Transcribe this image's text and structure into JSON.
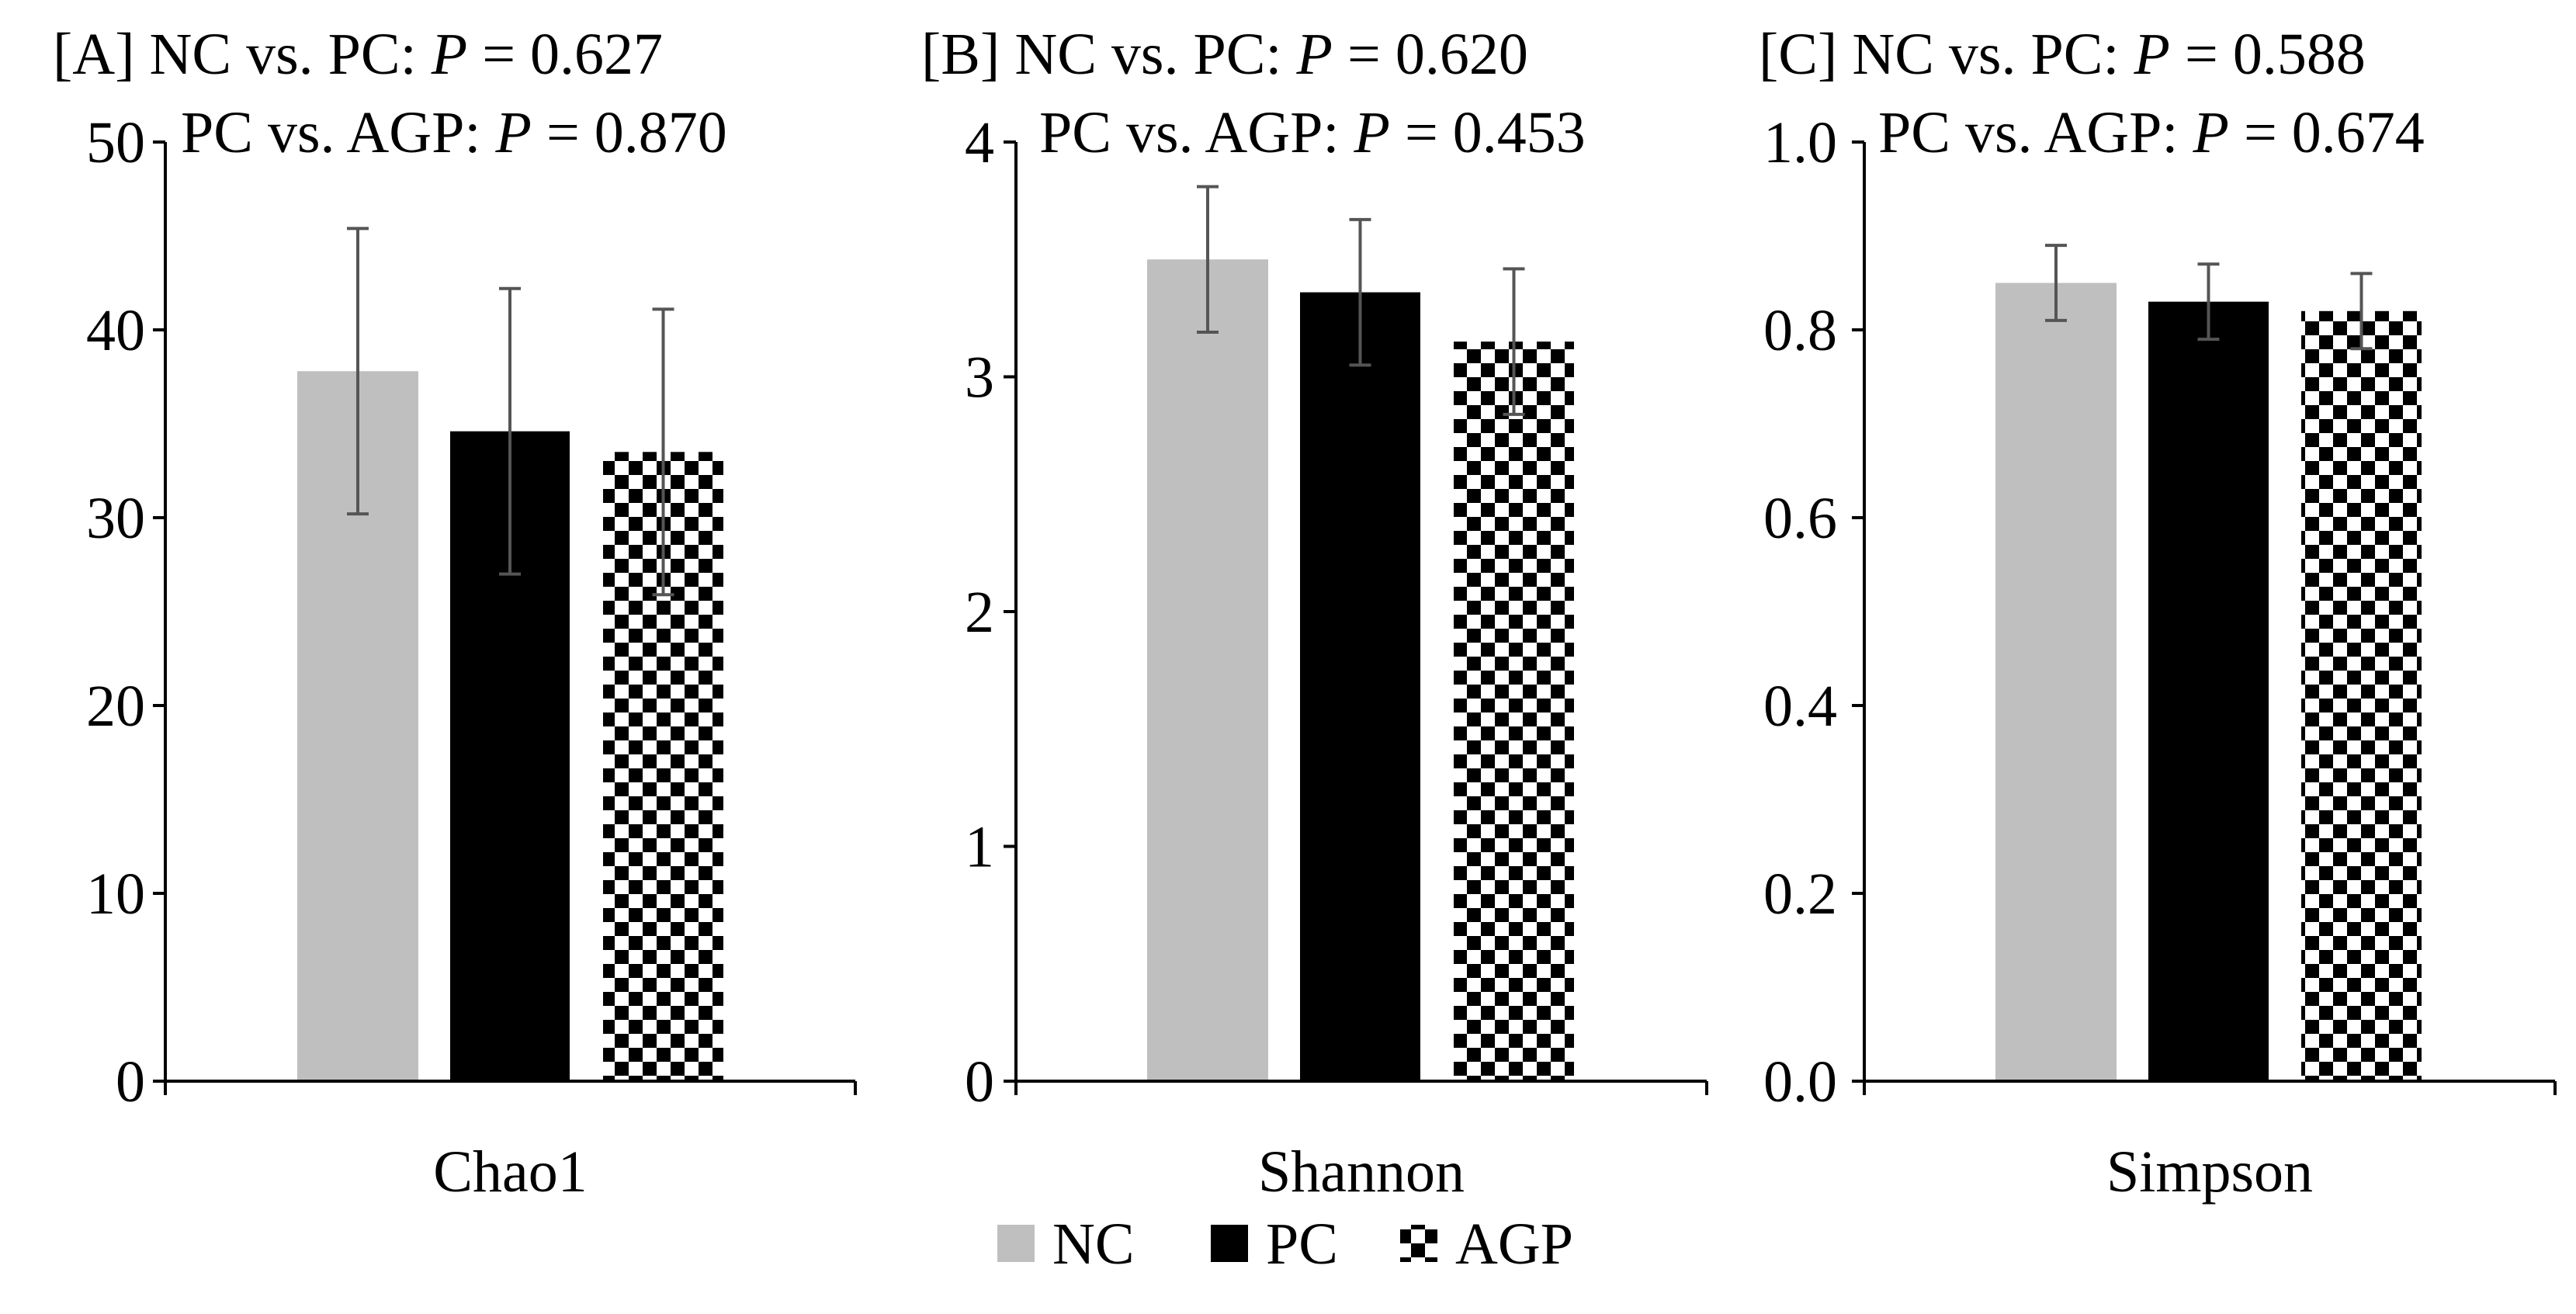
{
  "chart_data": [
    {
      "type": "bar",
      "panel": "[A]",
      "annotations": [
        {
          "comparison": "NC vs. PC:",
          "p_label": "P",
          "p_value": "= 0.627"
        },
        {
          "comparison": "PC vs. AGP:",
          "p_label": "P",
          "p_value": "= 0.870"
        }
      ],
      "categories": [
        "Chao1"
      ],
      "series": [
        {
          "name": "NC",
          "values": [
            37.8
          ],
          "error": [
            7.6
          ]
        },
        {
          "name": "PC",
          "values": [
            34.6
          ],
          "error": [
            7.6
          ]
        },
        {
          "name": "AGP",
          "values": [
            33.5
          ],
          "error": [
            7.6
          ]
        }
      ],
      "ylim": [
        0,
        50
      ],
      "yticks": [
        0,
        10,
        20,
        30,
        40,
        50
      ],
      "ytick_labels": [
        "0",
        "10",
        "20",
        "30",
        "40",
        "50"
      ],
      "xlabel": "Chao1"
    },
    {
      "type": "bar",
      "panel": "[B]",
      "annotations": [
        {
          "comparison": "NC vs. PC:",
          "p_label": "P",
          "p_value": "= 0.620"
        },
        {
          "comparison": "PC vs. AGP:",
          "p_label": "P",
          "p_value": "= 0.453"
        }
      ],
      "categories": [
        "Shannon"
      ],
      "series": [
        {
          "name": "NC",
          "values": [
            3.5
          ],
          "error": [
            0.31
          ]
        },
        {
          "name": "PC",
          "values": [
            3.36
          ],
          "error": [
            0.31
          ]
        },
        {
          "name": "AGP",
          "values": [
            3.15
          ],
          "error": [
            0.31
          ]
        }
      ],
      "ylim": [
        0,
        4
      ],
      "yticks": [
        0,
        1,
        2,
        3,
        4
      ],
      "ytick_labels": [
        "0",
        "1",
        "2",
        "3",
        "4"
      ],
      "xlabel": "Shannon"
    },
    {
      "type": "bar",
      "panel": "[C]",
      "annotations": [
        {
          "comparison": "NC vs. PC:",
          "p_label": "P",
          "p_value": "= 0.588"
        },
        {
          "comparison": "PC vs. AGP:",
          "p_label": "P",
          "p_value": "= 0.674"
        }
      ],
      "categories": [
        "Simpson"
      ],
      "series": [
        {
          "name": "NC",
          "values": [
            0.85
          ],
          "error": [
            0.04
          ]
        },
        {
          "name": "PC",
          "values": [
            0.83
          ],
          "error": [
            0.04
          ]
        },
        {
          "name": "AGP",
          "values": [
            0.82
          ],
          "error": [
            0.04
          ]
        }
      ],
      "ylim": [
        0,
        1
      ],
      "yticks": [
        0,
        0.2,
        0.4,
        0.6,
        0.8,
        1.0
      ],
      "ytick_labels": [
        "0.0",
        "0.2",
        "0.4",
        "0.6",
        "0.8",
        "1.0"
      ],
      "xlabel": "Simpson"
    }
  ],
  "legend": {
    "placement": "bottom-center",
    "items": [
      {
        "name": "NC",
        "style": "solid",
        "color": "#bfbfbf"
      },
      {
        "name": "PC",
        "style": "solid",
        "color": "#000000"
      },
      {
        "name": "AGP",
        "style": "checkered",
        "color": "#000000"
      }
    ]
  },
  "colors": {
    "NC": "#bfbfbf",
    "PC": "#000000",
    "AGP_dark": "#000000",
    "AGP_light": "#ffffff",
    "error_bar": "#555555",
    "axis": "#000000"
  }
}
